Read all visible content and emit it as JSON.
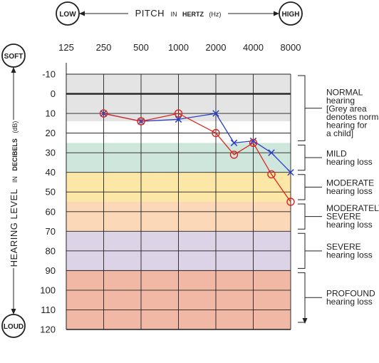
{
  "chart_data": {
    "type": "line",
    "title_parts": {
      "main": "PITCH",
      "in": "IN",
      "unit": "HERTZ",
      "suffix": "(Hz)"
    },
    "x_axis": {
      "scale": "log2",
      "ticks": [
        125,
        250,
        500,
        1000,
        2000,
        4000,
        8000
      ],
      "left_badge": "LOW",
      "right_badge": "HIGH"
    },
    "y_axis": {
      "label_parts": {
        "main": "HEARING LEVEL",
        "in": "IN",
        "unit": "DECIBELS",
        "suffix": "(dB)"
      },
      "ticks": [
        -10,
        0,
        10,
        20,
        30,
        40,
        50,
        60,
        70,
        80,
        90,
        100,
        110,
        120
      ],
      "range": [
        -10,
        120
      ],
      "inverted": true,
      "top_badge": "SOFT",
      "bottom_badge": "LOUD"
    },
    "bands": [
      {
        "from": -10,
        "to": 14,
        "color": "#e4e4e4"
      },
      {
        "from": 25,
        "to": 40,
        "color": "#cfe6dc"
      },
      {
        "from": 40,
        "to": 55,
        "color": "#fde7a6"
      },
      {
        "from": 55,
        "to": 70,
        "color": "#fbd8b8"
      },
      {
        "from": 70,
        "to": 90,
        "color": "#ddd3e7"
      },
      {
        "from": 90,
        "to": 120,
        "color": "#f1b8a5"
      }
    ],
    "categories": [
      {
        "lines": [
          "NORMAL",
          "hearing",
          "[Grey area",
          "denotes normal",
          "hearing for",
          "a child]"
        ],
        "from": -10,
        "to": 25
      },
      {
        "lines": [
          "MILD",
          "hearing loss"
        ],
        "from": 25,
        "to": 40
      },
      {
        "lines": [
          "MODERATE",
          "hearing loss"
        ],
        "from": 40,
        "to": 55
      },
      {
        "lines": [
          "MODERATELY",
          "SEVERE",
          "hearing loss"
        ],
        "from": 55,
        "to": 70
      },
      {
        "lines": [
          "SEVERE",
          "hearing loss"
        ],
        "from": 70,
        "to": 90
      },
      {
        "lines": [
          "PROFOUND",
          "hearing loss"
        ],
        "from": 90,
        "to": 120
      }
    ],
    "series": [
      {
        "marker": "x",
        "color": "#2b3fc8",
        "points": [
          {
            "x": 250,
            "y": 10
          },
          {
            "x": 500,
            "y": 14
          },
          {
            "x": 1000,
            "y": 13
          },
          {
            "x": 2000,
            "y": 10
          },
          {
            "x": 2800,
            "y": 25
          },
          {
            "x": 4000,
            "y": 24
          },
          {
            "x": 5600,
            "y": 30
          },
          {
            "x": 8000,
            "y": 40
          }
        ]
      },
      {
        "marker": "o",
        "color": "#d9271f",
        "points": [
          {
            "x": 250,
            "y": 10
          },
          {
            "x": 500,
            "y": 14
          },
          {
            "x": 1000,
            "y": 10
          },
          {
            "x": 2000,
            "y": 20
          },
          {
            "x": 2800,
            "y": 31
          },
          {
            "x": 4000,
            "y": 25
          },
          {
            "x": 5600,
            "y": 41
          },
          {
            "x": 8000,
            "y": 55
          }
        ]
      }
    ]
  }
}
